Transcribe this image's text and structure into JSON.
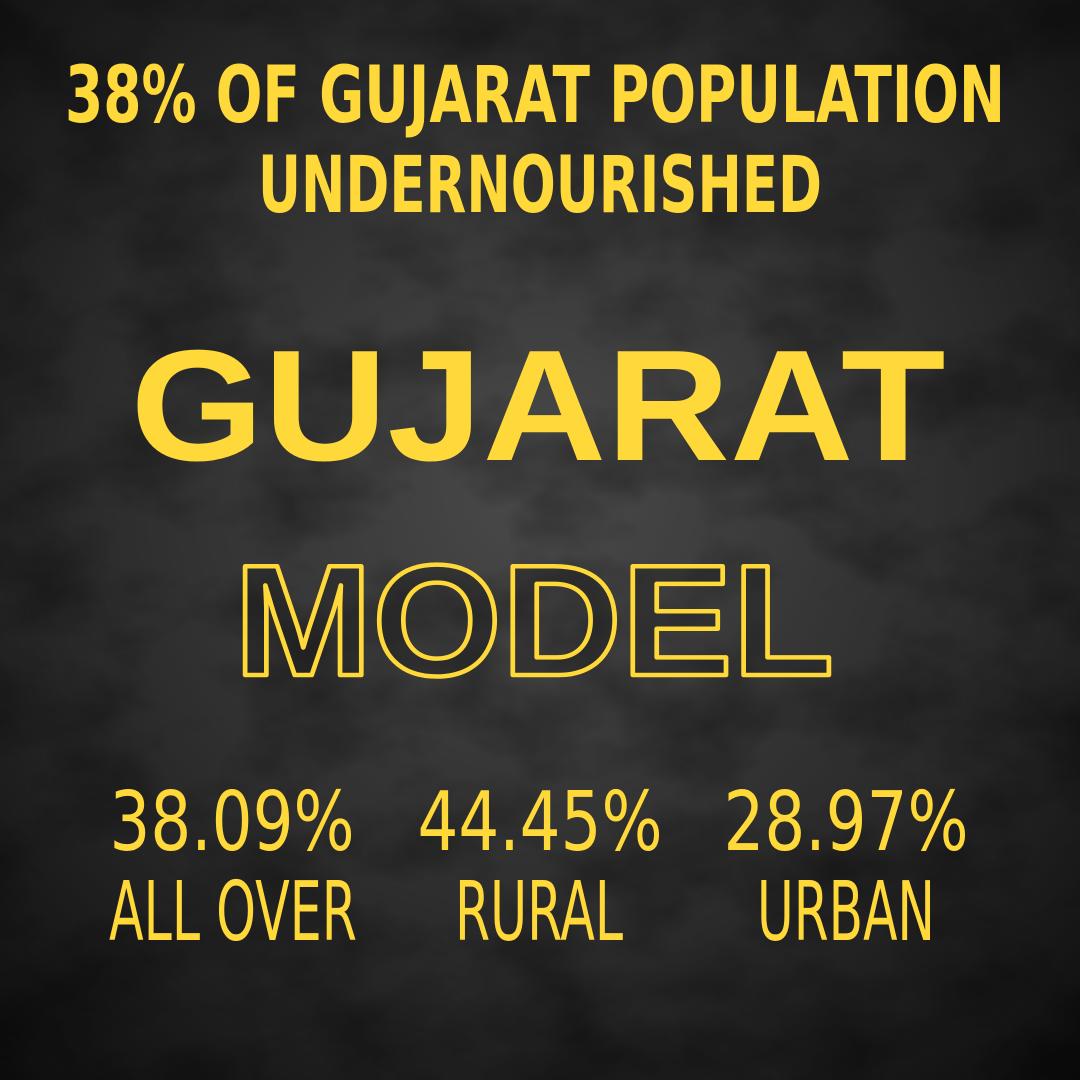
{
  "headline": {
    "lines": [
      "38% OF GUJARAT POPULATION",
      "UNDERNOURISHED"
    ]
  },
  "title": "GUJARAT",
  "subtitle": "MODEL",
  "stats": [
    {
      "value": "38.09%",
      "label": "ALL OVER"
    },
    {
      "value": "44.45%",
      "label": "RURAL"
    },
    {
      "value": "28.97%",
      "label": "URBAN"
    }
  ]
}
